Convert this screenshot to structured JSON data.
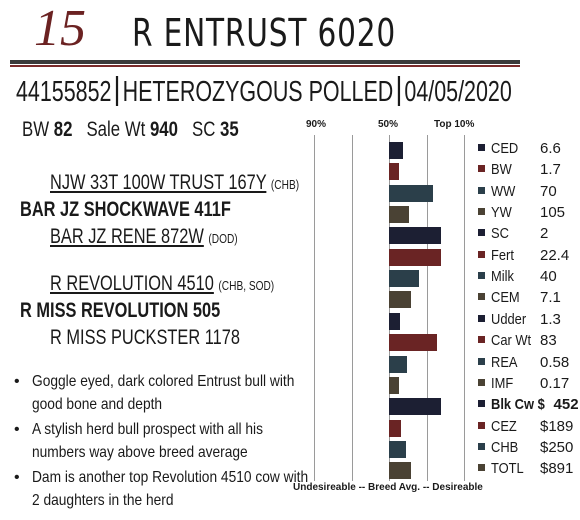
{
  "header": {
    "lot_number": "15",
    "animal_name": "R  ENTRUST 6020"
  },
  "id_line": {
    "reg_number": "44155852",
    "polled": "HETEROZYGOUS POLLED",
    "birth_date": "04/05/2020"
  },
  "stats": {
    "bw_label": "BW",
    "bw_value": "82",
    "sale_wt_label": "Sale Wt",
    "sale_wt_value": "940",
    "sc_label": "SC",
    "sc_value": "35"
  },
  "pedigree": {
    "sire_sire": "NJW 33T 100W TRUST 167Y",
    "sire_sire_tag": "(CHB)",
    "sire": "BAR JZ SHOCKWAVE 411F",
    "sire_dam": "BAR JZ RENE 872W",
    "sire_dam_tag": "(DOD)",
    "dam_sire": "R REVOLUTION 4510",
    "dam_sire_tag": "(CHB, SOD)",
    "dam": "R MISS REVOLUTION 505",
    "dam_dam": "R MISS PUCKSTER 1178"
  },
  "bullets": [
    "Goggle eyed, dark colored Entrust bull with good bone and depth",
    "A stylish herd bull prospect with all his numbers way above breed average",
    "Dam is another top Revolution 4510 cow with 2 daughters in the herd"
  ],
  "chart_data": {
    "type": "bar",
    "header_labels": [
      "90%",
      "50%",
      "Top 10%"
    ],
    "footer_label": "Undesireable -- Breed Avg. -- Desireable",
    "traits": [
      {
        "label": "CED",
        "value": "6.6",
        "bar": 0.14,
        "color": "#1c1f33"
      },
      {
        "label": "BW",
        "value": "1.7",
        "bar": 0.1,
        "color": "#6a2424"
      },
      {
        "label": "WW",
        "value": "70",
        "bar": 0.44,
        "color": "#2b3f4a"
      },
      {
        "label": "YW",
        "value": "105",
        "bar": 0.2,
        "color": "#4a4234"
      },
      {
        "label": "SC",
        "value": "2",
        "bar": 0.52,
        "color": "#1c1f33"
      },
      {
        "label": "Fert",
        "value": "22.4",
        "bar": 0.52,
        "color": "#6a2424"
      },
      {
        "label": "Milk",
        "value": "40",
        "bar": 0.3,
        "color": "#2b3f4a"
      },
      {
        "label": "CEM",
        "value": "7.1",
        "bar": 0.22,
        "color": "#4a4234"
      },
      {
        "label": "Udder",
        "value": "1.3",
        "bar": 0.11,
        "color": "#1c1f33"
      },
      {
        "label": "Car Wt",
        "value": "83",
        "bar": 0.48,
        "color": "#6a2424"
      },
      {
        "label": "REA",
        "value": "0.58",
        "bar": 0.18,
        "color": "#2b3f4a"
      },
      {
        "label": "IMF",
        "value": "0.17",
        "bar": 0.1,
        "color": "#4a4234"
      },
      {
        "label": "Blk Cw $",
        "value": "452",
        "bar": 0.52,
        "color": "#1c1f33",
        "bold": true
      },
      {
        "label": "CEZ",
        "value": "$189",
        "bar": 0.12,
        "color": "#6a2424"
      },
      {
        "label": "CHB",
        "value": "$250",
        "bar": 0.17,
        "color": "#2b3f4a"
      },
      {
        "label": "TOTL",
        "value": "$891",
        "bar": 0.22,
        "color": "#4a4234"
      }
    ]
  }
}
